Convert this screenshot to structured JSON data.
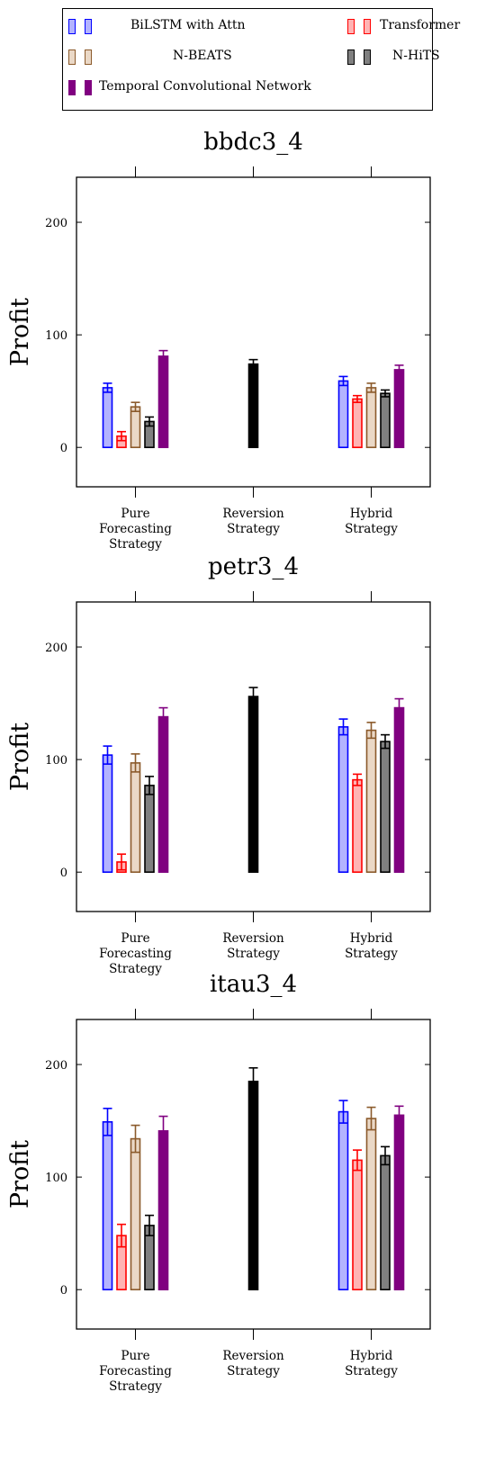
{
  "legend": {
    "entries": [
      {
        "label": "BiLSTM with Attn",
        "fill": "#b3b3ff",
        "stroke": "#0000ff"
      },
      {
        "label": "Transformer",
        "fill": "#ffb3b3",
        "stroke": "#ff0000"
      },
      {
        "label": "N-BEATS",
        "fill": "#ead8c6",
        "stroke": "#8b5a2b"
      },
      {
        "label": "N-HiTS",
        "fill": "#808080",
        "stroke": "#000000"
      },
      {
        "label": "Temporal Convolutional Network",
        "fill": "#800080",
        "stroke": "#800080"
      }
    ]
  },
  "chart_data": [
    {
      "type": "bar",
      "title": "bbdc3_4",
      "ylabel": "Profit",
      "ylim": [
        -35,
        240
      ],
      "yticks": [
        0,
        100,
        200
      ],
      "categories": [
        [
          "Pure",
          "Forecasting",
          "Strategy"
        ],
        [
          "Reversion",
          "Strategy"
        ],
        [
          "Hybrid",
          "Strategy"
        ]
      ],
      "series": [
        {
          "name": "BiLSTM with Attn",
          "values": [
            53,
            null,
            59
          ],
          "errors": [
            4,
            null,
            4
          ]
        },
        {
          "name": "Transformer",
          "values": [
            10,
            null,
            43
          ],
          "errors": [
            4,
            null,
            3
          ]
        },
        {
          "name": "N-BEATS",
          "values": [
            36,
            null,
            53
          ],
          "errors": [
            4,
            null,
            4
          ]
        },
        {
          "name": "N-HiTS",
          "values": [
            23,
            null,
            48
          ],
          "errors": [
            4,
            null,
            3
          ]
        },
        {
          "name": "Temporal Convolutional Network",
          "values": [
            81,
            74,
            69
          ],
          "errors": [
            5,
            4,
            4
          ]
        }
      ]
    },
    {
      "type": "bar",
      "title": "petr3_4",
      "ylabel": "Profit",
      "ylim": [
        -35,
        240
      ],
      "yticks": [
        0,
        100,
        200
      ],
      "categories": [
        [
          "Pure",
          "Forecasting",
          "Strategy"
        ],
        [
          "Reversion",
          "Strategy"
        ],
        [
          "Hybrid",
          "Strategy"
        ]
      ],
      "series": [
        {
          "name": "BiLSTM with Attn",
          "values": [
            104,
            null,
            129
          ],
          "errors": [
            8,
            null,
            7
          ]
        },
        {
          "name": "Transformer",
          "values": [
            9,
            null,
            82
          ],
          "errors": [
            7,
            null,
            5
          ]
        },
        {
          "name": "N-BEATS",
          "values": [
            97,
            null,
            126
          ],
          "errors": [
            8,
            null,
            7
          ]
        },
        {
          "name": "N-HiTS",
          "values": [
            77,
            null,
            116
          ],
          "errors": [
            8,
            null,
            6
          ]
        },
        {
          "name": "Temporal Convolutional Network",
          "values": [
            138,
            156,
            146
          ],
          "errors": [
            8,
            8,
            8
          ]
        }
      ]
    },
    {
      "type": "bar",
      "title": "itau3_4",
      "ylabel": "Profit",
      "ylim": [
        -35,
        240
      ],
      "yticks": [
        0,
        100,
        200
      ],
      "categories": [
        [
          "Pure",
          "Forecasting",
          "Strategy"
        ],
        [
          "Reversion",
          "Strategy"
        ],
        [
          "Hybrid",
          "Strategy"
        ]
      ],
      "series": [
        {
          "name": "BiLSTM with Attn",
          "values": [
            149,
            null,
            158
          ],
          "errors": [
            12,
            null,
            10
          ]
        },
        {
          "name": "Transformer",
          "values": [
            48,
            null,
            115
          ],
          "errors": [
            10,
            null,
            9
          ]
        },
        {
          "name": "N-BEATS",
          "values": [
            134,
            null,
            152
          ],
          "errors": [
            12,
            null,
            10
          ]
        },
        {
          "name": "N-HiTS",
          "values": [
            57,
            null,
            119
          ],
          "errors": [
            9,
            null,
            8
          ]
        },
        {
          "name": "Temporal Convolutional Network",
          "values": [
            141,
            185,
            155
          ],
          "errors": [
            13,
            12,
            8
          ]
        }
      ]
    }
  ]
}
